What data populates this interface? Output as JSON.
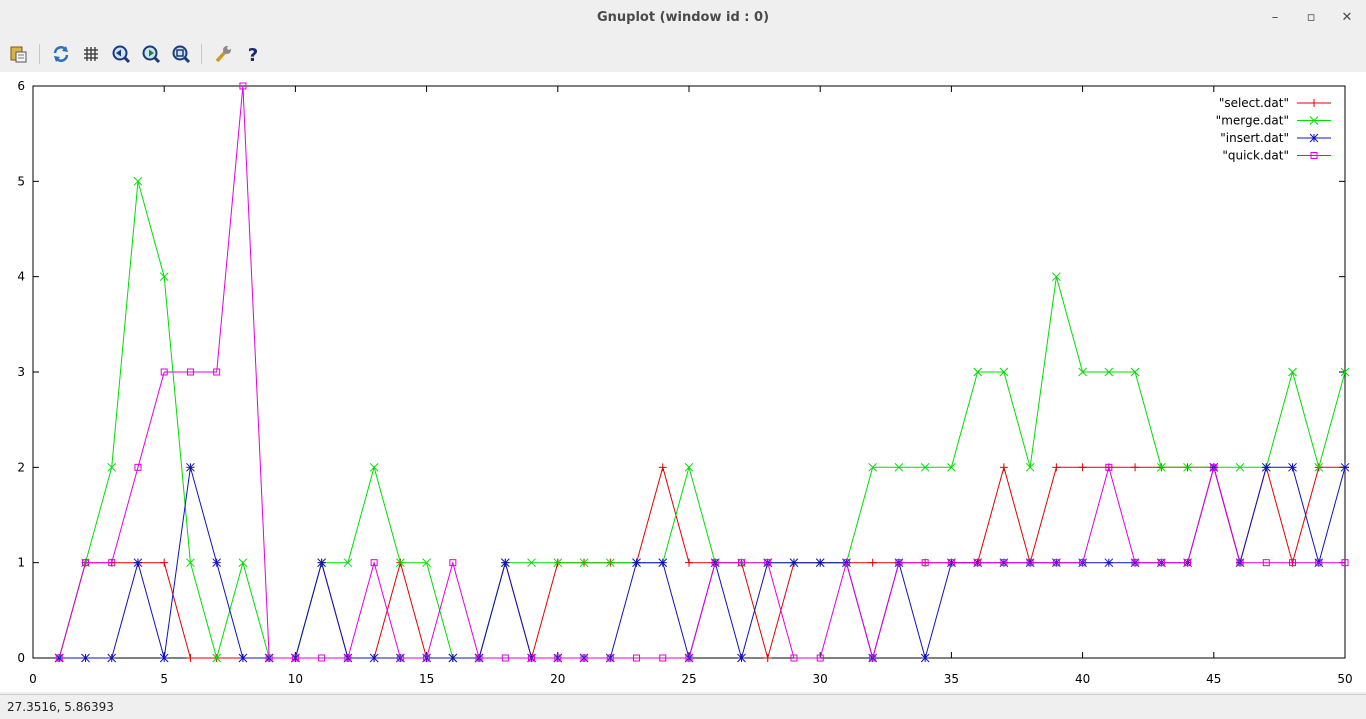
{
  "window": {
    "title": "Gnuplot (window id : 0)",
    "minimize_label": "–",
    "maximize_label": "▫",
    "close_label": "✕"
  },
  "toolbar": {
    "buttons": [
      {
        "icon": "clipboard-copy-icon"
      },
      {
        "icon": "replot-icon"
      },
      {
        "icon": "grid-icon"
      },
      {
        "icon": "zoom-previous-icon"
      },
      {
        "icon": "zoom-next-icon"
      },
      {
        "icon": "unzoom-icon"
      },
      {
        "icon": "settings-wrench-icon"
      },
      {
        "icon": "help-icon"
      }
    ]
  },
  "status": {
    "coordinates": "27.3516,  5.86393"
  },
  "chart_data": {
    "type": "line",
    "title": "",
    "xlabel": "",
    "ylabel": "",
    "xlim": [
      0,
      50
    ],
    "ylim": [
      0,
      6
    ],
    "xticks": [
      0,
      5,
      10,
      15,
      20,
      25,
      30,
      35,
      40,
      45,
      50
    ],
    "yticks": [
      0,
      1,
      2,
      3,
      4,
      5,
      6
    ],
    "grid": false,
    "legend_position": "top-right",
    "x": [
      1,
      2,
      3,
      4,
      5,
      6,
      7,
      8,
      9,
      10,
      11,
      12,
      13,
      14,
      15,
      16,
      17,
      18,
      19,
      20,
      21,
      22,
      23,
      24,
      25,
      26,
      27,
      28,
      29,
      30,
      31,
      32,
      33,
      34,
      35,
      36,
      37,
      38,
      39,
      40,
      41,
      42,
      43,
      44,
      45,
      46,
      47,
      48,
      49,
      50
    ],
    "series": [
      {
        "name": "\"select.dat\"",
        "color": "#e00000",
        "marker": "plus",
        "values": [
          0,
          1,
          1,
          1,
          1,
          0,
          0,
          0,
          0,
          0,
          1,
          0,
          0,
          1,
          0,
          0,
          0,
          1,
          0,
          1,
          1,
          1,
          1,
          2,
          1,
          1,
          1,
          0,
          1,
          1,
          1,
          1,
          1,
          1,
          1,
          1,
          2,
          1,
          2,
          2,
          2,
          2,
          2,
          2,
          2,
          1,
          2,
          1,
          2,
          2
        ]
      },
      {
        "name": "\"merge.dat\"",
        "color": "#00dd00",
        "marker": "cross",
        "values": [
          0,
          1,
          2,
          5,
          4,
          1,
          0,
          1,
          0,
          0,
          1,
          1,
          2,
          1,
          1,
          0,
          0,
          1,
          1,
          1,
          1,
          1,
          1,
          1,
          2,
          1,
          1,
          1,
          1,
          1,
          1,
          2,
          2,
          2,
          2,
          3,
          3,
          2,
          4,
          3,
          3,
          3,
          2,
          2,
          2,
          2,
          2,
          3,
          2,
          3
        ]
      },
      {
        "name": "\"insert.dat\"",
        "color": "#1010c0",
        "marker": "star",
        "values": [
          0,
          0,
          0,
          1,
          0,
          2,
          1,
          0,
          0,
          0,
          1,
          0,
          0,
          0,
          0,
          0,
          0,
          1,
          0,
          0,
          0,
          0,
          1,
          1,
          0,
          1,
          0,
          1,
          1,
          1,
          1,
          0,
          1,
          0,
          1,
          1,
          1,
          1,
          1,
          1,
          1,
          1,
          1,
          1,
          2,
          1,
          2,
          2,
          1,
          2
        ]
      },
      {
        "name": "\"quick.dat\"",
        "color": "#e000e0",
        "marker": "box",
        "values": [
          0,
          1,
          1,
          2,
          3,
          3,
          3,
          6,
          0,
          0,
          0,
          0,
          1,
          0,
          0,
          1,
          0,
          0,
          0,
          0,
          0,
          0,
          0,
          0,
          0,
          1,
          1,
          1,
          0,
          0,
          1,
          0,
          1,
          1,
          1,
          1,
          1,
          1,
          1,
          1,
          2,
          1,
          1,
          1,
          2,
          1,
          1,
          1,
          1,
          1
        ]
      }
    ]
  }
}
